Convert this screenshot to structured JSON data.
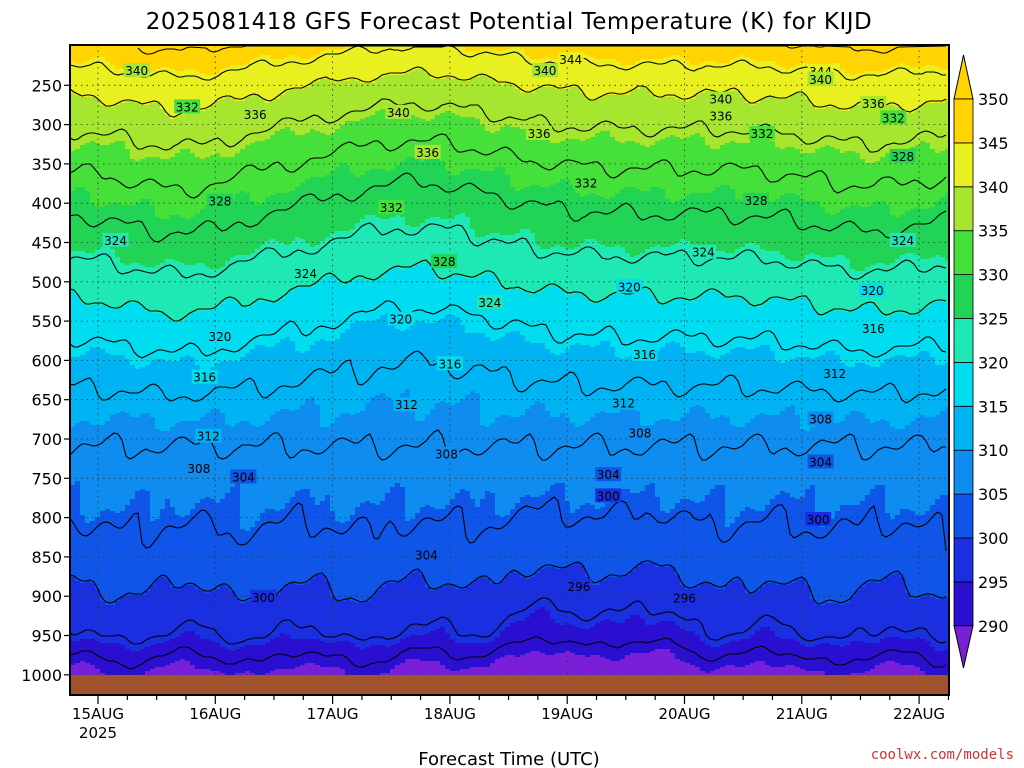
{
  "title": "2025081418 GFS Forecast Potential Temperature (K) for KIJD",
  "credit": "coolwx.com/models",
  "chart_data": {
    "type": "heatmap",
    "title": "2025081418 GFS Forecast Potential Temperature (K) for KIJD",
    "xlabel": "Forecast Time (UTC)",
    "ylabel": "",
    "x_ticks": [
      "15AUG",
      "16AUG",
      "17AUG",
      "18AUG",
      "19AUG",
      "20AUG",
      "21AUG",
      "22AUG"
    ],
    "x_year_label": "2025",
    "y_ticks": [
      250,
      300,
      350,
      400,
      450,
      500,
      550,
      600,
      650,
      700,
      750,
      800,
      850,
      900,
      950,
      1000
    ],
    "y_range": [
      200,
      1000
    ],
    "colorbar": {
      "levels": [
        290,
        295,
        300,
        305,
        310,
        315,
        320,
        325,
        330,
        335,
        340,
        345,
        350
      ],
      "colors": [
        "#7a1fd8",
        "#2a0fd0",
        "#1a2fe0",
        "#0f55e8",
        "#0f8cf0",
        "#00b4f4",
        "#00dcf0",
        "#1ee8b4",
        "#22d455",
        "#46e03a",
        "#a6e62e",
        "#e8f020",
        "#ffd400"
      ]
    },
    "contour_labels": [
      {
        "value": 344,
        "day": 4.03,
        "p": 218
      },
      {
        "value": 344,
        "day": 6.16,
        "p": 233
      },
      {
        "value": 340,
        "day": 0.33,
        "p": 232
      },
      {
        "value": 340,
        "day": 3.81,
        "p": 232
      },
      {
        "value": 340,
        "day": 6.16,
        "p": 243
      },
      {
        "value": 340,
        "day": 5.31,
        "p": 268
      },
      {
        "value": 340,
        "day": 2.56,
        "p": 285
      },
      {
        "value": 336,
        "day": 1.34,
        "p": 288
      },
      {
        "value": 336,
        "day": 5.31,
        "p": 290
      },
      {
        "value": 336,
        "day": 6.61,
        "p": 274
      },
      {
        "value": 336,
        "day": 3.76,
        "p": 312
      },
      {
        "value": 336,
        "day": 2.81,
        "p": 336
      },
      {
        "value": 332,
        "day": 0.76,
        "p": 278
      },
      {
        "value": 332,
        "day": 6.78,
        "p": 292
      },
      {
        "value": 332,
        "day": 5.66,
        "p": 312
      },
      {
        "value": 332,
        "day": 4.16,
        "p": 375
      },
      {
        "value": 332,
        "day": 2.5,
        "p": 406
      },
      {
        "value": 328,
        "day": 6.86,
        "p": 341
      },
      {
        "value": 328,
        "day": 1.04,
        "p": 398
      },
      {
        "value": 328,
        "day": 5.61,
        "p": 397
      },
      {
        "value": 328,
        "day": 2.95,
        "p": 475
      },
      {
        "value": 324,
        "day": 0.15,
        "p": 448
      },
      {
        "value": 324,
        "day": 6.86,
        "p": 448
      },
      {
        "value": 324,
        "day": 5.16,
        "p": 463
      },
      {
        "value": 324,
        "day": 1.77,
        "p": 490
      },
      {
        "value": 324,
        "day": 3.34,
        "p": 527
      },
      {
        "value": 320,
        "day": 4.53,
        "p": 507
      },
      {
        "value": 320,
        "day": 6.6,
        "p": 512
      },
      {
        "value": 320,
        "day": 2.58,
        "p": 548
      },
      {
        "value": 320,
        "day": 1.04,
        "p": 570
      },
      {
        "value": 316,
        "day": 6.61,
        "p": 560
      },
      {
        "value": 316,
        "day": 4.66,
        "p": 593
      },
      {
        "value": 316,
        "day": 3.0,
        "p": 605
      },
      {
        "value": 316,
        "day": 0.91,
        "p": 622
      },
      {
        "value": 312,
        "day": 6.28,
        "p": 617
      },
      {
        "value": 312,
        "day": 4.48,
        "p": 655
      },
      {
        "value": 312,
        "day": 2.63,
        "p": 657
      },
      {
        "value": 312,
        "day": 0.94,
        "p": 697
      },
      {
        "value": 308,
        "day": 6.16,
        "p": 675
      },
      {
        "value": 308,
        "day": 4.62,
        "p": 693
      },
      {
        "value": 308,
        "day": 2.97,
        "p": 720
      },
      {
        "value": 308,
        "day": 0.86,
        "p": 738
      },
      {
        "value": 304,
        "day": 6.16,
        "p": 730
      },
      {
        "value": 304,
        "day": 4.35,
        "p": 746
      },
      {
        "value": 304,
        "day": 1.24,
        "p": 749
      },
      {
        "value": 304,
        "day": 2.8,
        "p": 848
      },
      {
        "value": 300,
        "day": 4.35,
        "p": 773
      },
      {
        "value": 300,
        "day": 6.14,
        "p": 803
      },
      {
        "value": 300,
        "day": 1.41,
        "p": 902
      },
      {
        "value": 296,
        "day": 4.1,
        "p": 888
      },
      {
        "value": 296,
        "day": 5.0,
        "p": 903
      }
    ]
  }
}
